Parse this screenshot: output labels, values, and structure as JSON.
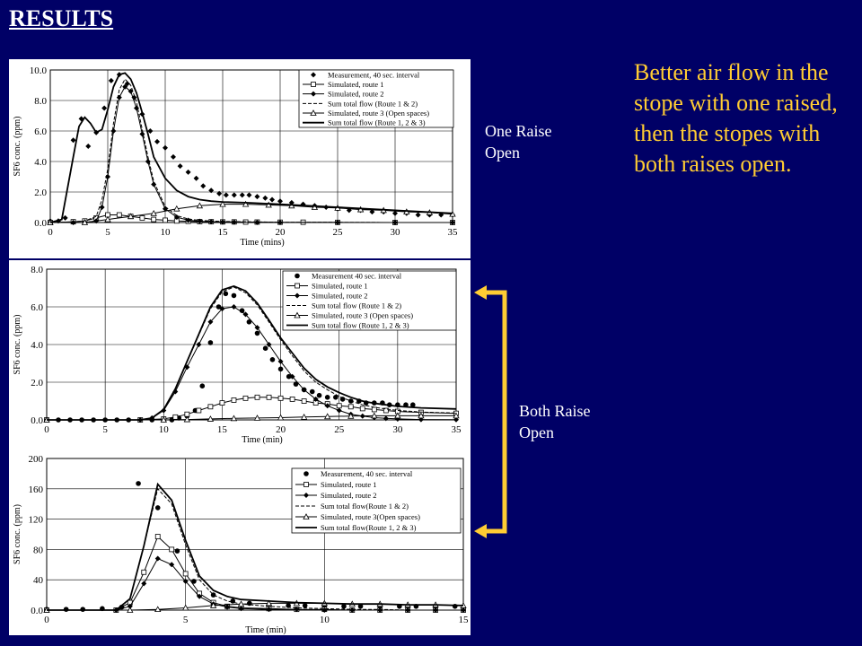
{
  "slide": {
    "title": "RESULTS",
    "bullet": "Better air flow in the stope with one raised, then the stopes with both raises open.",
    "label_one": [
      "One Raise",
      "Open"
    ],
    "label_both": [
      "Both Raise",
      "Open"
    ],
    "accent": "#FFCC33",
    "background": "#000066"
  },
  "chart_data": [
    {
      "type": "line",
      "xlabel": "Time (mins)",
      "ylabel": "SF6 conc. (ppm)",
      "xlim": [
        0,
        35
      ],
      "ylim": [
        0,
        10
      ],
      "xticks": [
        0,
        5,
        10,
        15,
        20,
        25,
        30,
        35
      ],
      "yticks": [
        0,
        2,
        4,
        6,
        8,
        10
      ],
      "ytick_labels": [
        "0.0",
        "2.0",
        "4.0",
        "6.0",
        "8.0",
        "10.0"
      ],
      "legend": "top-right",
      "series": [
        {
          "name": "Measurement, 40 sec. interval",
          "marker": "diamond",
          "line": false,
          "x": [
            0,
            0.7,
            1.3,
            2,
            2.7,
            3.3,
            4,
            4.7,
            5.3,
            6,
            6.7,
            7.3,
            8,
            8.7,
            9.3,
            10,
            10.7,
            11.3,
            12,
            12.7,
            13.3,
            14,
            14.7,
            15.3,
            16,
            16.7,
            17.3,
            18,
            18.7,
            19.3,
            20,
            21,
            22,
            23,
            24,
            25,
            26,
            27,
            28,
            29,
            30,
            31,
            32,
            33,
            34,
            35
          ],
          "y": [
            0.1,
            0.1,
            0.3,
            5.4,
            6.8,
            5.0,
            5.9,
            7.5,
            9.3,
            9.7,
            9.1,
            8.2,
            7.1,
            6.0,
            5.3,
            4.9,
            4.3,
            3.7,
            3.3,
            2.9,
            2.4,
            2.1,
            1.9,
            1.8,
            1.8,
            1.8,
            1.8,
            1.7,
            1.6,
            1.5,
            1.4,
            1.3,
            1.2,
            1.1,
            1.0,
            0.9,
            0.8,
            0.8,
            0.7,
            0.7,
            0.6,
            0.6,
            0.5,
            0.5,
            0.5,
            0.5
          ]
        },
        {
          "name": "Simulated, route 1",
          "marker": "square",
          "line": true,
          "x": [
            0,
            2,
            3,
            4,
            5,
            6,
            7,
            8,
            9,
            10,
            11,
            12,
            13,
            14,
            15,
            16,
            17,
            18,
            20,
            22,
            25,
            30,
            35
          ],
          "y": [
            0,
            0.05,
            0.1,
            0.3,
            0.5,
            0.5,
            0.4,
            0.3,
            0.2,
            0.15,
            0.1,
            0.08,
            0.06,
            0.05,
            0.04,
            0.04,
            0.03,
            0.03,
            0.02,
            0.02,
            0.01,
            0,
            0
          ]
        },
        {
          "name": "Simulated, route 2",
          "marker": "diamond",
          "line": true,
          "x": [
            0,
            2,
            3,
            4,
            4.5,
            5,
            5.5,
            6,
            6.5,
            7,
            7.5,
            8,
            8.5,
            9,
            10,
            11,
            12,
            13,
            14,
            15,
            16,
            18,
            20,
            25,
            30,
            35
          ],
          "y": [
            0,
            0,
            0,
            0.1,
            1.0,
            3.0,
            6.0,
            8.2,
            8.9,
            8.6,
            7.5,
            5.8,
            4.0,
            2.5,
            0.9,
            0.35,
            0.15,
            0.08,
            0.05,
            0.03,
            0.02,
            0.01,
            0,
            0,
            0,
            0
          ]
        },
        {
          "name": "Sum total flow (Route 1 & 2)",
          "marker": "none",
          "line": true,
          "dash": true,
          "x": [
            0,
            2,
            3,
            4,
            4.5,
            5,
            5.5,
            6,
            6.5,
            7,
            7.5,
            8,
            8.5,
            9,
            10,
            11,
            12,
            13,
            14,
            15,
            16,
            18,
            20,
            25,
            30,
            35
          ],
          "y": [
            0,
            0.05,
            0.1,
            0.4,
            1.5,
            3.5,
            6.5,
            8.7,
            9.4,
            9.0,
            7.9,
            6.1,
            4.3,
            2.7,
            1.05,
            0.45,
            0.23,
            0.14,
            0.1,
            0.07,
            0.06,
            0.04,
            0.02,
            0.01,
            0,
            0
          ]
        },
        {
          "name": "Simulated, route 3 (Open spaces)",
          "marker": "triangle",
          "line": true,
          "x": [
            0,
            3,
            5,
            7,
            9,
            11,
            13,
            15,
            17,
            19,
            21,
            23,
            25,
            27,
            29,
            31,
            33,
            35
          ],
          "y": [
            0,
            0,
            0.2,
            0.4,
            0.6,
            0.9,
            1.1,
            1.2,
            1.2,
            1.15,
            1.1,
            1.0,
            0.95,
            0.85,
            0.8,
            0.7,
            0.65,
            0.55
          ]
        },
        {
          "name": "Sum total flow (Route 1, 2 & 3)",
          "marker": "none",
          "line": true,
          "bold": true,
          "x": [
            0,
            1,
            2,
            2.5,
            3,
            3.5,
            4,
            4.5,
            5,
            5.5,
            6,
            6.5,
            7,
            7.5,
            8,
            8.5,
            9,
            10,
            11,
            12,
            13,
            14,
            15,
            17,
            20,
            25,
            30,
            35
          ],
          "y": [
            0,
            0.2,
            4.3,
            6.3,
            6.9,
            6.5,
            5.9,
            6.1,
            7.4,
            8.9,
            9.7,
            9.8,
            9.4,
            8.5,
            7.2,
            5.8,
            4.3,
            2.9,
            2.1,
            1.7,
            1.5,
            1.4,
            1.35,
            1.3,
            1.2,
            1.0,
            0.8,
            0.6
          ]
        }
      ]
    },
    {
      "type": "line",
      "xlabel": "Time (min)",
      "ylabel": "SF6 conc. (ppm)",
      "xlim": [
        0,
        35
      ],
      "ylim": [
        0,
        8
      ],
      "xticks": [
        0,
        5,
        10,
        15,
        20,
        25,
        30,
        35
      ],
      "yticks": [
        0,
        2,
        4,
        6,
        8
      ],
      "ytick_labels": [
        "0.0",
        "2.0",
        "4.0",
        "6.0",
        "8.0"
      ],
      "legend": "top-right",
      "series": [
        {
          "name": "Measurement 40 sec. interval",
          "marker": "circle",
          "line": false,
          "x": [
            0,
            1,
            2,
            3,
            4,
            5,
            6,
            7,
            8,
            9,
            10,
            10.7,
            11.3,
            12,
            12.7,
            13.3,
            14,
            14.7,
            15.3,
            16,
            16.7,
            17.3,
            18,
            18.7,
            19.3,
            20,
            20.7,
            21.3,
            22,
            22.7,
            23.3,
            24,
            24.7,
            25.3,
            26,
            26.7,
            27.3,
            28,
            28.7,
            29.3,
            30,
            30.7,
            31.3
          ],
          "y": [
            0,
            0,
            0,
            0,
            0,
            0,
            0,
            0,
            0,
            0,
            0,
            0,
            0.1,
            0.2,
            0.5,
            1.8,
            4.1,
            6.0,
            6.7,
            6.6,
            5.8,
            5.2,
            4.6,
            3.8,
            3.2,
            2.7,
            2.3,
            1.9,
            1.6,
            1.5,
            1.3,
            1.2,
            1.2,
            1.1,
            1.0,
            1.0,
            0.9,
            0.9,
            0.9,
            0.8,
            0.8,
            0.8,
            0.8
          ]
        },
        {
          "name": "Simulated, route 1",
          "marker": "square",
          "line": true,
          "x": [
            0,
            8,
            10,
            11,
            12,
            13,
            14,
            15,
            16,
            17,
            18,
            19,
            20,
            21,
            22,
            23,
            24,
            25,
            26,
            27,
            28,
            29,
            30,
            32,
            35
          ],
          "y": [
            0,
            0,
            0.05,
            0.15,
            0.3,
            0.5,
            0.7,
            0.9,
            1.05,
            1.15,
            1.2,
            1.2,
            1.15,
            1.1,
            1.0,
            0.9,
            0.85,
            0.75,
            0.7,
            0.6,
            0.55,
            0.5,
            0.45,
            0.4,
            0.35
          ]
        },
        {
          "name": "Simulated, route 2",
          "marker": "diamond",
          "line": true,
          "x": [
            0,
            8,
            9,
            10,
            11,
            12,
            13,
            14,
            15,
            16,
            17,
            18,
            19,
            20,
            21,
            22,
            23,
            24,
            25,
            26,
            27,
            28,
            29,
            30,
            32,
            35
          ],
          "y": [
            0,
            0,
            0.1,
            0.5,
            1.5,
            2.8,
            4.0,
            5.2,
            5.9,
            6.0,
            5.6,
            4.9,
            4.0,
            3.1,
            2.3,
            1.6,
            1.1,
            0.75,
            0.5,
            0.3,
            0.2,
            0.12,
            0.08,
            0.05,
            0.02,
            0.01
          ]
        },
        {
          "name": "Sum total flow (Route 1 & 2)",
          "marker": "none",
          "line": true,
          "dash": true,
          "x": [
            0,
            8,
            9,
            10,
            11,
            12,
            13,
            14,
            15,
            16,
            17,
            18,
            19,
            20,
            21,
            22,
            23,
            24,
            25,
            26,
            27,
            28,
            29,
            30,
            32,
            35
          ],
          "y": [
            0,
            0,
            0.1,
            0.55,
            1.65,
            3.1,
            4.5,
            5.9,
            6.8,
            7.05,
            6.75,
            6.1,
            5.2,
            4.25,
            3.4,
            2.6,
            2.0,
            1.6,
            1.25,
            1.0,
            0.8,
            0.67,
            0.58,
            0.5,
            0.42,
            0.36
          ]
        },
        {
          "name": "Simulated, route 3 (Open spaces)",
          "marker": "triangle",
          "line": true,
          "x": [
            0,
            10,
            12,
            14,
            16,
            18,
            20,
            22,
            24,
            26,
            28,
            30,
            32,
            35
          ],
          "y": [
            0,
            0,
            0.02,
            0.05,
            0.08,
            0.1,
            0.12,
            0.15,
            0.18,
            0.2,
            0.22,
            0.22,
            0.22,
            0.22
          ]
        },
        {
          "name": "Sum total flow (Route 1, 2 & 3)",
          "marker": "none",
          "line": true,
          "bold": true,
          "x": [
            0,
            8,
            9,
            10,
            11,
            12,
            13,
            14,
            15,
            16,
            17,
            18,
            19,
            20,
            21,
            22,
            23,
            24,
            25,
            26,
            27,
            28,
            29,
            30,
            32,
            35
          ],
          "y": [
            0,
            0,
            0.1,
            0.55,
            1.65,
            3.1,
            4.55,
            6.0,
            6.9,
            7.1,
            6.85,
            6.2,
            5.3,
            4.35,
            3.55,
            2.75,
            2.15,
            1.75,
            1.45,
            1.2,
            1.0,
            0.88,
            0.8,
            0.72,
            0.64,
            0.58
          ]
        }
      ]
    },
    {
      "type": "line",
      "xlabel": "Time (min)",
      "ylabel": "SF6 conc. (ppm)",
      "xlim": [
        0,
        15
      ],
      "ylim": [
        0,
        200
      ],
      "xticks": [
        0,
        5,
        10,
        15
      ],
      "yticks": [
        0,
        40,
        80,
        120,
        160,
        200
      ],
      "ytick_labels": [
        "0.0",
        "40",
        "80",
        "120",
        "160",
        "200"
      ],
      "legend": "top-right",
      "series": [
        {
          "name": "Measurement, 40 sec. interval",
          "marker": "circle",
          "line": false,
          "x": [
            0,
            0.7,
            1.3,
            2,
            2.7,
            3.3,
            4,
            4.7,
            5.3,
            6,
            6.7,
            7.3,
            8,
            8.7,
            9.3,
            10,
            10.7,
            11.3,
            12,
            12.7,
            13.3,
            14,
            14.7
          ],
          "y": [
            1,
            1,
            1,
            2,
            4,
            167,
            135,
            78,
            38,
            20,
            12,
            9,
            7,
            6,
            6,
            5,
            5,
            5,
            5,
            5,
            5,
            5,
            5
          ]
        },
        {
          "name": "Simulated, route 1",
          "marker": "square",
          "line": true,
          "x": [
            0,
            2.5,
            3,
            3.5,
            4,
            4.5,
            5,
            5.5,
            6,
            6.5,
            7,
            8,
            9,
            10,
            11,
            12,
            13,
            14,
            15
          ],
          "y": [
            0,
            0,
            10,
            50,
            97,
            80,
            48,
            22,
            10,
            5,
            3,
            2,
            1,
            1,
            0,
            0,
            0,
            0,
            0
          ]
        },
        {
          "name": "Simulated, route 2",
          "marker": "diamond",
          "line": true,
          "x": [
            0,
            2.5,
            3,
            3.5,
            4,
            4.5,
            5,
            5.5,
            6,
            6.5,
            7,
            8,
            9,
            10,
            11,
            12,
            13,
            14,
            15
          ],
          "y": [
            0,
            0,
            5,
            35,
            68,
            60,
            38,
            18,
            8,
            4,
            2,
            1,
            1,
            0,
            0,
            0,
            0,
            0,
            0
          ]
        },
        {
          "name": "Sum total flow(Route 1 & 2)",
          "marker": "none",
          "line": true,
          "dash": true,
          "x": [
            0,
            2.5,
            3,
            3.5,
            4,
            4.5,
            5,
            5.5,
            6,
            6.5,
            7,
            8,
            9,
            10,
            11,
            12,
            13,
            14,
            15
          ],
          "y": [
            0,
            0,
            15,
            85,
            160,
            140,
            86,
            40,
            20,
            12,
            8,
            5,
            3,
            2,
            1,
            1,
            0,
            0,
            0
          ]
        },
        {
          "name": "Simulated, route 3(Open spaces)",
          "marker": "triangle",
          "line": true,
          "x": [
            0,
            3,
            4,
            5,
            6,
            7,
            8,
            9,
            10,
            11,
            12,
            13,
            14,
            15
          ],
          "y": [
            0,
            0,
            1,
            3,
            6,
            8,
            9,
            9,
            9,
            8,
            8,
            7,
            7,
            6
          ]
        },
        {
          "name": "Sum total flow(Route 1, 2 & 3)",
          "marker": "none",
          "line": true,
          "bold": true,
          "x": [
            0,
            2.5,
            3,
            3.5,
            4,
            4.5,
            5,
            5.5,
            6,
            6.5,
            7,
            8,
            9,
            10,
            11,
            12,
            13,
            14,
            15
          ],
          "y": [
            0,
            0,
            15,
            85,
            166,
            145,
            92,
            45,
            26,
            18,
            14,
            12,
            10,
            9,
            8,
            8,
            7,
            7,
            6
          ]
        }
      ]
    }
  ]
}
